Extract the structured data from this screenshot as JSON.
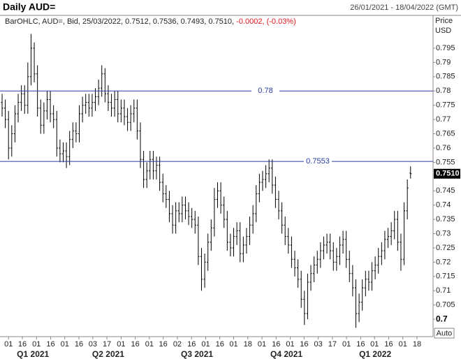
{
  "chart_data": {
    "type": "ohlc",
    "title": "Daily AUD=",
    "date_range": "26/01/2021 - 18/04/2022 (GMT)",
    "info": [
      "BarOHLC, AUD=, Bid, 25/03/2022, 0.7512, 0.7536, 0.7493, 0.7510,",
      "-0.0002, (-0.03%)"
    ],
    "y_axis_label": [
      "Price",
      "USD"
    ],
    "auto_button": "Auto",
    "color": "#000000",
    "change_color": "#e0141e",
    "line_color": "#2a3a9e",
    "ylim": [
      0.6939,
      0.8065
    ],
    "yticks": [
      0.7,
      0.705,
      0.71,
      0.715,
      0.72,
      0.725,
      0.73,
      0.735,
      0.74,
      0.745,
      0.755,
      0.76,
      0.765,
      0.77,
      0.775,
      0.78,
      0.785,
      0.79,
      0.795
    ],
    "xlim": [
      0,
      134
    ],
    "xticks": [
      {
        "value": 2.0,
        "label": "01"
      },
      {
        "value": 6.3,
        "label": "16"
      },
      {
        "value": 10.7,
        "label": "01"
      },
      {
        "value": 15.1,
        "label": "16"
      },
      {
        "value": 19.5,
        "label": "01"
      },
      {
        "value": 23.9,
        "label": "16"
      },
      {
        "value": 28.2,
        "label": "03"
      },
      {
        "value": 32.6,
        "label": "17"
      },
      {
        "value": 37.0,
        "label": "01"
      },
      {
        "value": 41.4,
        "label": "16"
      },
      {
        "value": 45.8,
        "label": "01"
      },
      {
        "value": 50.1,
        "label": "16"
      },
      {
        "value": 54.5,
        "label": "02"
      },
      {
        "value": 58.9,
        "label": "16"
      },
      {
        "value": 63.3,
        "label": "01"
      },
      {
        "value": 67.7,
        "label": "16"
      },
      {
        "value": 72.0,
        "label": "01"
      },
      {
        "value": 76.4,
        "label": "18"
      },
      {
        "value": 80.8,
        "label": "01"
      },
      {
        "value": 85.2,
        "label": "16"
      },
      {
        "value": 89.6,
        "label": "01"
      },
      {
        "value": 93.9,
        "label": "16"
      },
      {
        "value": 98.3,
        "label": "03"
      },
      {
        "value": 102.7,
        "label": "17"
      },
      {
        "value": 107.1,
        "label": "01"
      },
      {
        "value": 111.5,
        "label": "16"
      },
      {
        "value": 115.8,
        "label": "01"
      },
      {
        "value": 120.2,
        "label": "16"
      },
      {
        "value": 124.6,
        "label": "01"
      },
      {
        "value": 129.0,
        "label": "18"
      }
    ],
    "quarter_ticks": [
      {
        "value": 9.6,
        "label": "Q1 2021"
      },
      {
        "value": 33.0,
        "label": "Q2 2021"
      },
      {
        "value": 60.6,
        "label": "Q3 2021"
      },
      {
        "value": 88.4,
        "label": "Q4 2021"
      },
      {
        "value": 116.0,
        "label": "Q1 2022"
      }
    ],
    "hlines": [
      0.78,
      0.7553
    ],
    "last_price": {
      "value": 0.751,
      "label": "0.7510"
    },
    "open": [
      0.776,
      0.774,
      0.77,
      0.76,
      0.765,
      0.772,
      0.776,
      0.779,
      0.775,
      0.785,
      0.795,
      0.786,
      0.774,
      0.768,
      0.773,
      0.777,
      0.772,
      0.77,
      0.76,
      0.758,
      0.759,
      0.757,
      0.763,
      0.766,
      0.765,
      0.772,
      0.775,
      0.776,
      0.774,
      0.776,
      0.778,
      0.781,
      0.786,
      0.779,
      0.776,
      0.774,
      0.777,
      0.772,
      0.774,
      0.771,
      0.769,
      0.772,
      0.774,
      0.766,
      0.756,
      0.749,
      0.752,
      0.756,
      0.752,
      0.754,
      0.748,
      0.744,
      0.742,
      0.737,
      0.733,
      0.738,
      0.737,
      0.74,
      0.738,
      0.736,
      0.735,
      0.733,
      0.722,
      0.714,
      0.72,
      0.727,
      0.732,
      0.742,
      0.745,
      0.74,
      0.735,
      0.727,
      0.725,
      0.729,
      0.731,
      0.723,
      0.726,
      0.729,
      0.733,
      0.737,
      0.744,
      0.748,
      0.749,
      0.751,
      0.753,
      0.747,
      0.742,
      0.738,
      0.733,
      0.729,
      0.726,
      0.721,
      0.718,
      0.714,
      0.707,
      0.702,
      0.713,
      0.716,
      0.719,
      0.721,
      0.724,
      0.726,
      0.727,
      0.724,
      0.72,
      0.722,
      0.726,
      0.728,
      0.721,
      0.716,
      0.711,
      0.702,
      0.706,
      0.711,
      0.714,
      0.713,
      0.717,
      0.719,
      0.722,
      0.724,
      0.728,
      0.729,
      0.731,
      0.735,
      0.727,
      0.721,
      0.738,
      0.7512
    ],
    "high": [
      0.779,
      0.777,
      0.773,
      0.768,
      0.775,
      0.779,
      0.782,
      0.782,
      0.79,
      0.8,
      0.797,
      0.789,
      0.777,
      0.776,
      0.78,
      0.78,
      0.775,
      0.773,
      0.763,
      0.762,
      0.762,
      0.766,
      0.769,
      0.769,
      0.775,
      0.778,
      0.779,
      0.779,
      0.779,
      0.781,
      0.784,
      0.789,
      0.788,
      0.782,
      0.779,
      0.78,
      0.78,
      0.777,
      0.777,
      0.774,
      0.775,
      0.777,
      0.777,
      0.769,
      0.759,
      0.755,
      0.759,
      0.759,
      0.757,
      0.757,
      0.751,
      0.747,
      0.745,
      0.74,
      0.741,
      0.741,
      0.743,
      0.743,
      0.741,
      0.739,
      0.738,
      0.736,
      0.725,
      0.723,
      0.73,
      0.735,
      0.746,
      0.748,
      0.748,
      0.743,
      0.738,
      0.73,
      0.732,
      0.734,
      0.734,
      0.729,
      0.732,
      0.736,
      0.74,
      0.747,
      0.751,
      0.752,
      0.754,
      0.756,
      0.756,
      0.75,
      0.745,
      0.741,
      0.736,
      0.732,
      0.729,
      0.724,
      0.721,
      0.717,
      0.71,
      0.716,
      0.719,
      0.722,
      0.724,
      0.727,
      0.729,
      0.73,
      0.73,
      0.727,
      0.725,
      0.729,
      0.731,
      0.731,
      0.724,
      0.719,
      0.714,
      0.709,
      0.714,
      0.717,
      0.717,
      0.72,
      0.722,
      0.725,
      0.727,
      0.731,
      0.732,
      0.734,
      0.738,
      0.738,
      0.73,
      0.741,
      0.749,
      0.7536
    ],
    "low": [
      0.771,
      0.767,
      0.756,
      0.757,
      0.762,
      0.769,
      0.773,
      0.772,
      0.772,
      0.782,
      0.783,
      0.771,
      0.765,
      0.765,
      0.77,
      0.769,
      0.767,
      0.757,
      0.755,
      0.755,
      0.753,
      0.754,
      0.76,
      0.762,
      0.762,
      0.769,
      0.772,
      0.771,
      0.771,
      0.773,
      0.775,
      0.778,
      0.776,
      0.773,
      0.771,
      0.771,
      0.769,
      0.769,
      0.768,
      0.766,
      0.766,
      0.769,
      0.763,
      0.753,
      0.746,
      0.746,
      0.749,
      0.749,
      0.749,
      0.745,
      0.741,
      0.739,
      0.734,
      0.73,
      0.73,
      0.734,
      0.734,
      0.735,
      0.733,
      0.732,
      0.73,
      0.719,
      0.71,
      0.711,
      0.717,
      0.724,
      0.729,
      0.739,
      0.737,
      0.732,
      0.724,
      0.722,
      0.722,
      0.726,
      0.72,
      0.72,
      0.723,
      0.726,
      0.73,
      0.734,
      0.741,
      0.745,
      0.746,
      0.748,
      0.744,
      0.739,
      0.735,
      0.73,
      0.726,
      0.723,
      0.718,
      0.715,
      0.711,
      0.704,
      0.698,
      0.7,
      0.71,
      0.713,
      0.716,
      0.718,
      0.721,
      0.723,
      0.721,
      0.717,
      0.717,
      0.719,
      0.723,
      0.718,
      0.713,
      0.708,
      0.697,
      0.699,
      0.703,
      0.708,
      0.71,
      0.71,
      0.714,
      0.716,
      0.719,
      0.721,
      0.725,
      0.726,
      0.728,
      0.724,
      0.717,
      0.719,
      0.735,
      0.7493
    ],
    "close": [
      0.774,
      0.77,
      0.76,
      0.765,
      0.772,
      0.776,
      0.779,
      0.775,
      0.785,
      0.795,
      0.786,
      0.774,
      0.768,
      0.773,
      0.777,
      0.772,
      0.77,
      0.76,
      0.758,
      0.759,
      0.757,
      0.763,
      0.766,
      0.765,
      0.772,
      0.775,
      0.776,
      0.774,
      0.776,
      0.778,
      0.781,
      0.786,
      0.779,
      0.776,
      0.774,
      0.777,
      0.772,
      0.774,
      0.771,
      0.769,
      0.772,
      0.774,
      0.766,
      0.756,
      0.749,
      0.752,
      0.756,
      0.752,
      0.754,
      0.748,
      0.744,
      0.742,
      0.737,
      0.733,
      0.738,
      0.737,
      0.74,
      0.738,
      0.736,
      0.735,
      0.733,
      0.722,
      0.714,
      0.72,
      0.727,
      0.732,
      0.742,
      0.745,
      0.74,
      0.735,
      0.727,
      0.725,
      0.729,
      0.731,
      0.723,
      0.726,
      0.729,
      0.733,
      0.737,
      0.744,
      0.748,
      0.749,
      0.751,
      0.753,
      0.747,
      0.742,
      0.738,
      0.733,
      0.729,
      0.726,
      0.721,
      0.718,
      0.714,
      0.707,
      0.702,
      0.713,
      0.716,
      0.719,
      0.721,
      0.724,
      0.726,
      0.727,
      0.724,
      0.72,
      0.722,
      0.726,
      0.728,
      0.721,
      0.716,
      0.711,
      0.702,
      0.706,
      0.711,
      0.714,
      0.713,
      0.717,
      0.719,
      0.722,
      0.724,
      0.728,
      0.729,
      0.731,
      0.735,
      0.727,
      0.721,
      0.738,
      0.746,
      0.751
    ]
  }
}
